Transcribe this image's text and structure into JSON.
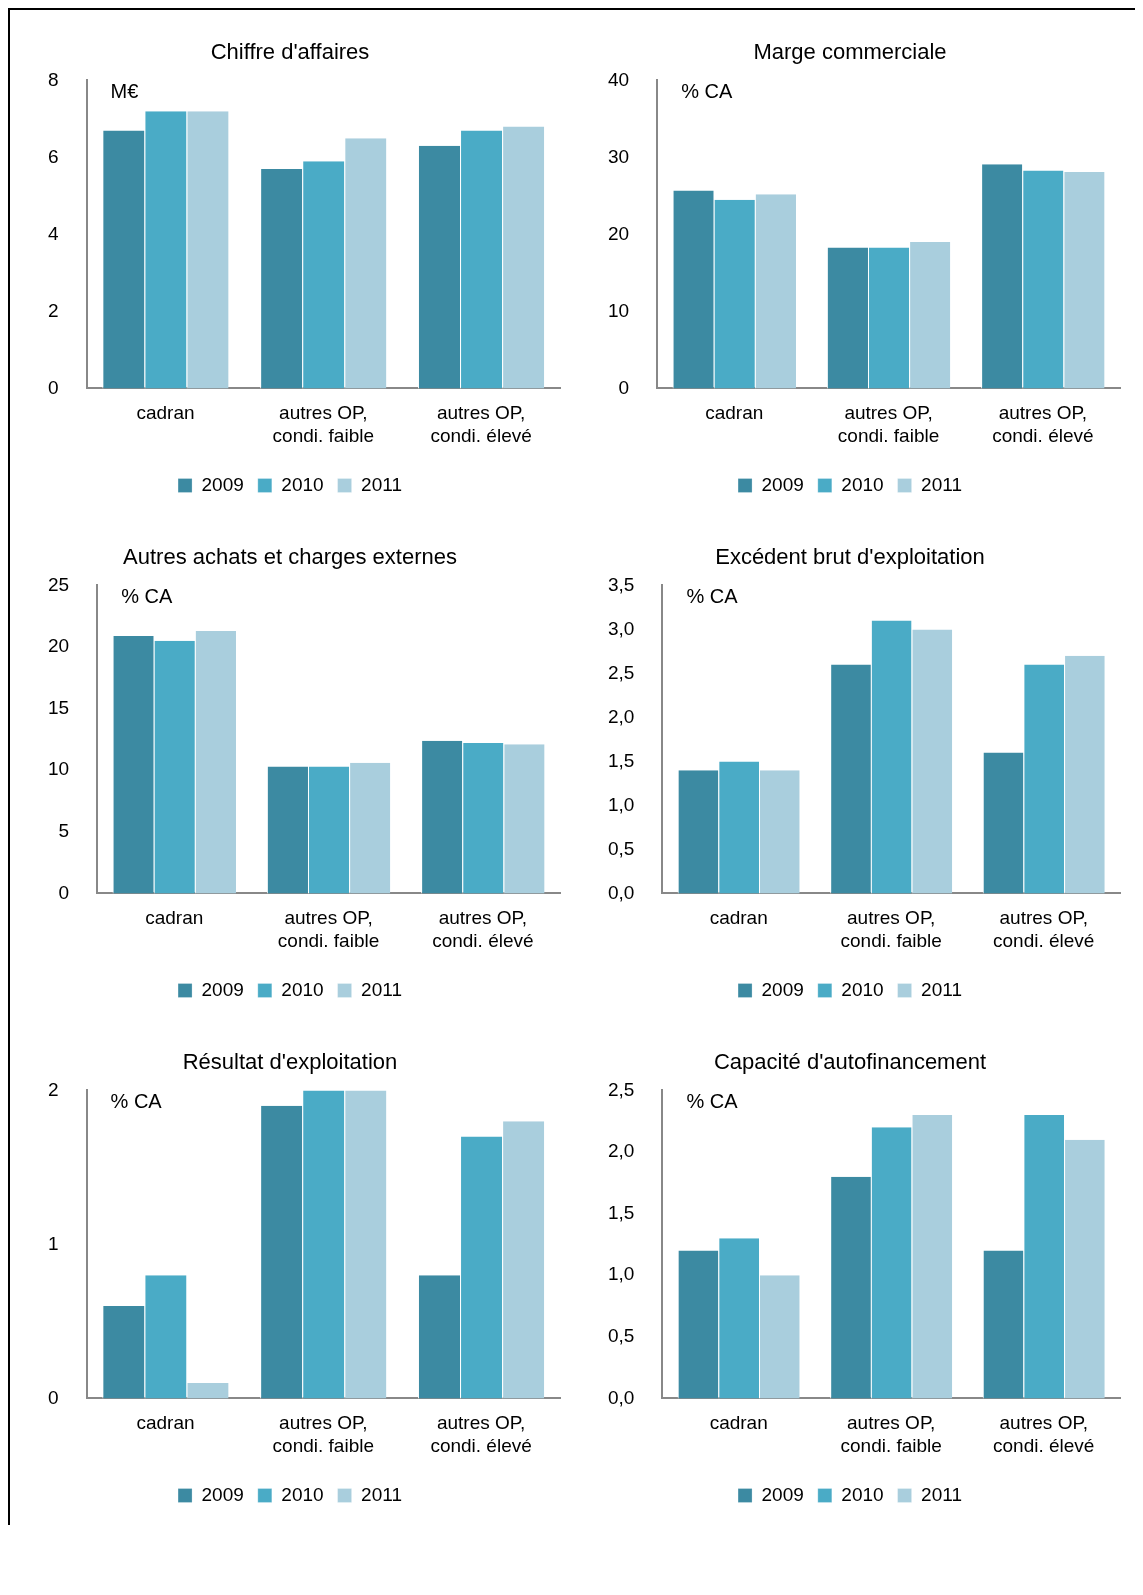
{
  "chart_data": [
    {
      "type": "bar",
      "title": "Chiffre d'affaires",
      "ylabel": "M€",
      "categories": [
        "cadran",
        "autres OP, condi. faible",
        "autres OP, condi. élevé"
      ],
      "series": [
        {
          "name": "2009",
          "color": "#3c8aa2",
          "values": [
            6.7,
            5.7,
            6.3
          ]
        },
        {
          "name": "2010",
          "color": "#4aabc6",
          "values": [
            7.2,
            5.9,
            6.7
          ]
        },
        {
          "name": "2011",
          "color": "#a9cedd",
          "values": [
            7.2,
            6.5,
            6.8
          ]
        }
      ],
      "ylim": [
        0,
        8
      ],
      "yticks": [
        0,
        2,
        4,
        6,
        8
      ],
      "grid": false,
      "legend": "bottom"
    },
    {
      "type": "bar",
      "title": "Marge commerciale",
      "ylabel": "% CA",
      "categories": [
        "cadran",
        "autres OP, condi. faible",
        "autres OP, condi. élevé"
      ],
      "series": [
        {
          "name": "2009",
          "color": "#3c8aa2",
          "values": [
            25.7,
            18.3,
            29.1
          ]
        },
        {
          "name": "2010",
          "color": "#4aabc6",
          "values": [
            24.5,
            18.3,
            28.3
          ]
        },
        {
          "name": "2011",
          "color": "#a9cedd",
          "values": [
            25.2,
            19.0,
            28.1
          ]
        }
      ],
      "ylim": [
        0,
        40
      ],
      "yticks": [
        0,
        10,
        20,
        30,
        40
      ],
      "grid": false,
      "legend": "bottom"
    },
    {
      "type": "bar",
      "title": "Autres achats et charges externes",
      "ylabel": "% CA",
      "categories": [
        "cadran",
        "autres OP, condi. faible",
        "autres OP, condi. élevé"
      ],
      "series": [
        {
          "name": "2009",
          "color": "#3c8aa2",
          "values": [
            20.9,
            10.3,
            12.4
          ]
        },
        {
          "name": "2010",
          "color": "#4aabc6",
          "values": [
            20.5,
            10.3,
            12.2
          ]
        },
        {
          "name": "2011",
          "color": "#a9cedd",
          "values": [
            21.3,
            10.6,
            12.1
          ]
        }
      ],
      "ylim": [
        0,
        25
      ],
      "yticks": [
        0,
        5,
        10,
        15,
        20,
        25
      ],
      "grid": false,
      "legend": "bottom"
    },
    {
      "type": "bar",
      "title": "Excédent brut d'exploitation",
      "ylabel": "% CA",
      "categories": [
        "cadran",
        "autres OP, condi. faible",
        "autres OP, condi. élevé"
      ],
      "series": [
        {
          "name": "2009",
          "color": "#3c8aa2",
          "values": [
            1.4,
            2.6,
            1.6
          ]
        },
        {
          "name": "2010",
          "color": "#4aabc6",
          "values": [
            1.5,
            3.1,
            2.6
          ]
        },
        {
          "name": "2011",
          "color": "#a9cedd",
          "values": [
            1.4,
            3.0,
            2.7
          ]
        }
      ],
      "ylim": [
        0,
        3.5
      ],
      "yticks": [
        {
          "value": 0,
          "label": "0,0"
        },
        {
          "value": 0.5,
          "label": "0,5"
        },
        {
          "value": 1,
          "label": "1,0"
        },
        {
          "value": 1.5,
          "label": "1,5"
        },
        {
          "value": 2,
          "label": "2,0"
        },
        {
          "value": 2.5,
          "label": "2,5"
        },
        {
          "value": 3,
          "label": "3,0"
        },
        {
          "value": 3.5,
          "label": "3,5"
        }
      ],
      "grid": false,
      "legend": "bottom"
    },
    {
      "type": "bar",
      "title": "Résultat d'exploitation",
      "ylabel": "% CA",
      "categories": [
        "cadran",
        "autres OP, condi. faible",
        "autres OP, condi. élevé"
      ],
      "series": [
        {
          "name": "2009",
          "color": "#3c8aa2",
          "values": [
            0.6,
            1.9,
            0.8
          ]
        },
        {
          "name": "2010",
          "color": "#4aabc6",
          "values": [
            0.8,
            2.0,
            1.7
          ]
        },
        {
          "name": "2011",
          "color": "#a9cedd",
          "values": [
            0.1,
            2.0,
            1.8
          ]
        }
      ],
      "ylim": [
        0,
        2
      ],
      "yticks": [
        0,
        1,
        2
      ],
      "grid": false,
      "legend": "bottom"
    },
    {
      "type": "bar",
      "title": "Capacité d'autofinancement",
      "ylabel": "% CA",
      "categories": [
        "cadran",
        "autres OP, condi. faible",
        "autres OP, condi. élevé"
      ],
      "series": [
        {
          "name": "2009",
          "color": "#3c8aa2",
          "values": [
            1.2,
            1.8,
            1.2
          ]
        },
        {
          "name": "2010",
          "color": "#4aabc6",
          "values": [
            1.3,
            2.2,
            2.3
          ]
        },
        {
          "name": "2011",
          "color": "#a9cedd",
          "values": [
            1.0,
            2.3,
            2.1
          ]
        }
      ],
      "ylim": [
        0,
        2.5
      ],
      "yticks": [
        {
          "value": 0,
          "label": "0,0"
        },
        {
          "value": 0.5,
          "label": "0,5"
        },
        {
          "value": 1,
          "label": "1,0"
        },
        {
          "value": 1.5,
          "label": "1,5"
        },
        {
          "value": 2,
          "label": "2,0"
        },
        {
          "value": 2.5,
          "label": "2,5"
        }
      ],
      "grid": false,
      "legend": "bottom"
    }
  ]
}
